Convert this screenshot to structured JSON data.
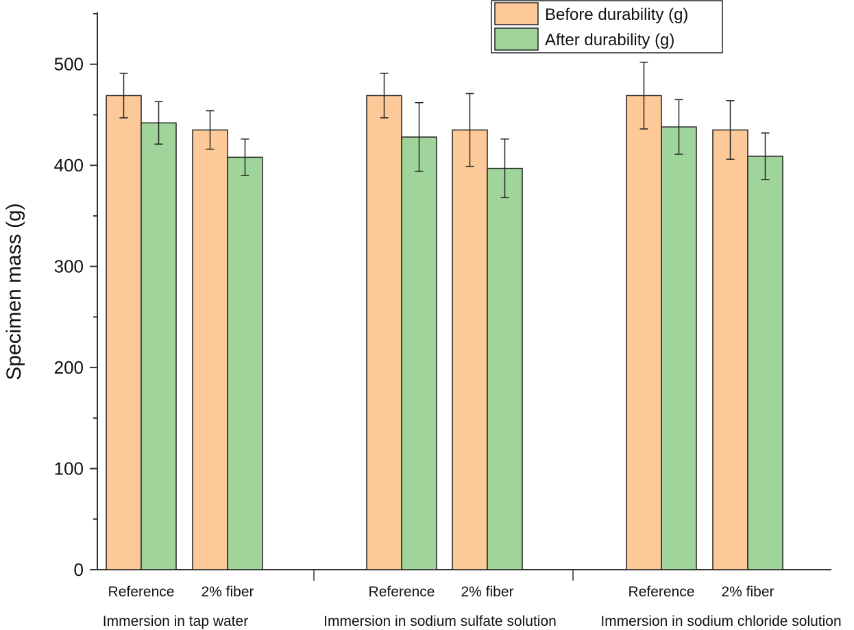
{
  "chart_data": {
    "type": "bar",
    "title": "",
    "xlabel": "",
    "ylabel": "Specimen mass (g)",
    "ylim": [
      0,
      550
    ],
    "yticks": [
      0,
      100,
      200,
      300,
      400,
      500
    ],
    "groups": [
      {
        "label": "Immersion in tap water",
        "categories": [
          "Reference",
          "2% fiber"
        ]
      },
      {
        "label": "Immersion in sodium sulfate solution",
        "categories": [
          "Reference",
          "2% fiber"
        ]
      },
      {
        "label": "Immersion in sodium chloride solution",
        "categories": [
          "Reference",
          "2% fiber"
        ]
      }
    ],
    "series": [
      {
        "name": "Before durability (g)",
        "color": "#fdc998",
        "values": [
          469,
          435,
          469,
          435,
          469,
          435
        ],
        "errors": [
          22,
          19,
          22,
          36,
          33,
          29
        ]
      },
      {
        "name": "After durability (g)",
        "color": "#9fd49a",
        "values": [
          442,
          408,
          428,
          397,
          438,
          409
        ],
        "errors": [
          21,
          18,
          34,
          29,
          27,
          23
        ]
      }
    ],
    "legend": "top-right",
    "grid": false
  }
}
